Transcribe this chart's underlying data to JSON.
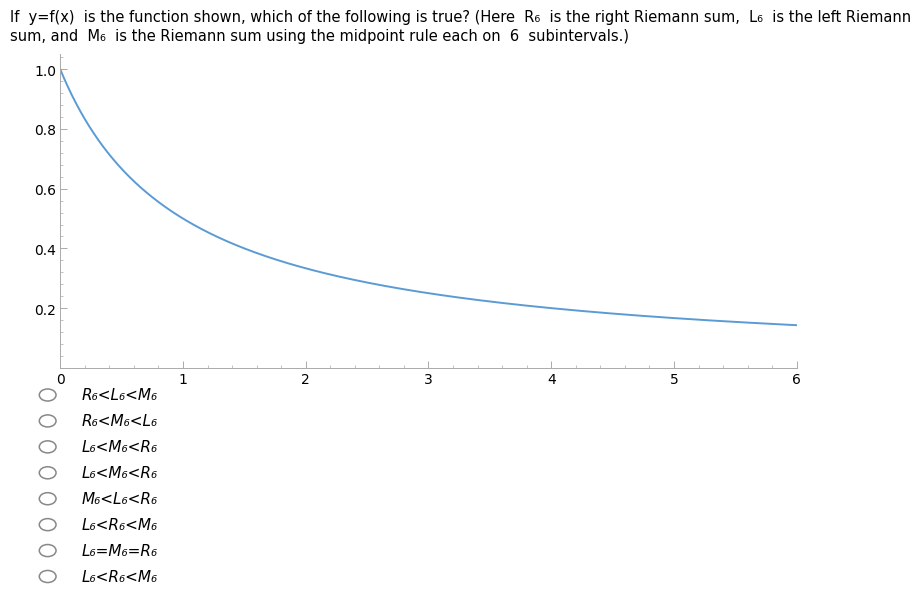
{
  "title_line1": "If  y=f(x)  is the function shown, which of the following is true? (Here  R₆  is the right Riemann sum,  L₆  is the left Riemann",
  "title_line2": "sum, and  M₆  is the Riemann sum using the midpoint rule each on  6  subintervals.)",
  "xlim": [
    0,
    6
  ],
  "ylim": [
    0,
    1.05
  ],
  "xticks": [
    0,
    1,
    2,
    3,
    4,
    5,
    6
  ],
  "yticks": [
    0.2,
    0.4,
    0.6,
    0.8,
    1.0
  ],
  "curve_color": "#5b9bd5",
  "curve_xstart": 0.0,
  "curve_xend": 6.0,
  "options": [
    "R₆<L₆<M₆",
    "R₆<M₆<L₆",
    "L₆<M₆<R₆",
    "L₆<M₆<R₆",
    "M₆<L₆<R₆",
    "L₆<R₆<M₆",
    "L₆=M₆=R₆",
    "L₆<R₆<M₆"
  ],
  "bg_color": "#ffffff",
  "text_color": "#000000",
  "tick_color": "#aaaaaa",
  "spine_color": "#aaaaaa",
  "option_fontsize": 11,
  "title_fontsize": 10.5,
  "axis_fontsize": 10
}
